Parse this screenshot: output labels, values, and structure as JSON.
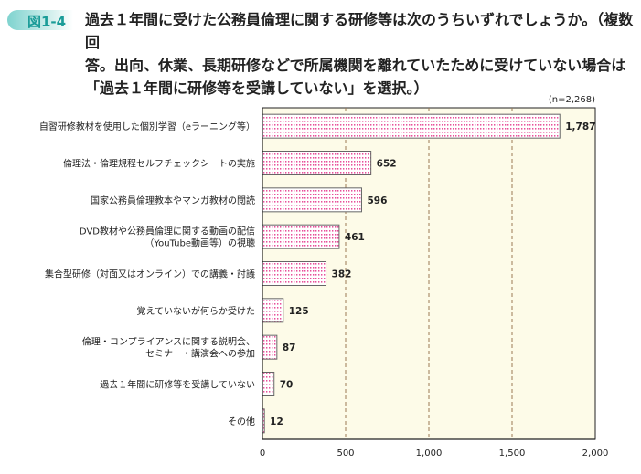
{
  "figure": {
    "label": "図1-4",
    "title_lines": [
      "過去１年間に受けた公務員倫理に関する研修等は次のうちいずれでしょうか。（複数回",
      "答。出向、休業、長期研修などで所属機関を離れていたために受けていない場合は",
      "「過去１年間に研修等を受講していない」を選択。）"
    ],
    "note": "(n=2,268)"
  },
  "chart_data": {
    "type": "bar",
    "orientation": "horizontal",
    "categories": [
      [
        "自習研修教材を使用した個別学習（eラーニング等）"
      ],
      [
        "倫理法・倫理規程セルフチェックシートの実施"
      ],
      [
        "国家公務員倫理教本やマンガ教材の閲読"
      ],
      [
        "DVD教材や公務員倫理に関する動画の配信",
        "（YouTube動画等）の視聴"
      ],
      [
        "集合型研修（対面又はオンライン）での講義・討議"
      ],
      [
        "覚えていないが何らか受けた"
      ],
      [
        "倫理・コンプライアンスに関する説明会、",
        "セミナー・講演会への参加"
      ],
      [
        "過去１年間に研修等を受講していない"
      ],
      [
        "その他"
      ]
    ],
    "values": [
      1787,
      652,
      596,
      461,
      382,
      125,
      87,
      70,
      12
    ],
    "value_labels": [
      "1,787",
      "652",
      "596",
      "461",
      "382",
      "125",
      "87",
      "70",
      "12"
    ],
    "xlim": [
      0,
      2000
    ],
    "xticks": [
      0,
      500,
      1000,
      1500,
      2000
    ],
    "xtick_labels": [
      "0",
      "500",
      "1,000",
      "1,500",
      "2,000"
    ],
    "grid": "vertical dashed",
    "colors": {
      "plot_bg": "#fdfbe8",
      "bar_dots": "#e8509a",
      "bar_border": "#666666",
      "grid": "#9a7a55",
      "accent": "#1a9c98"
    }
  }
}
